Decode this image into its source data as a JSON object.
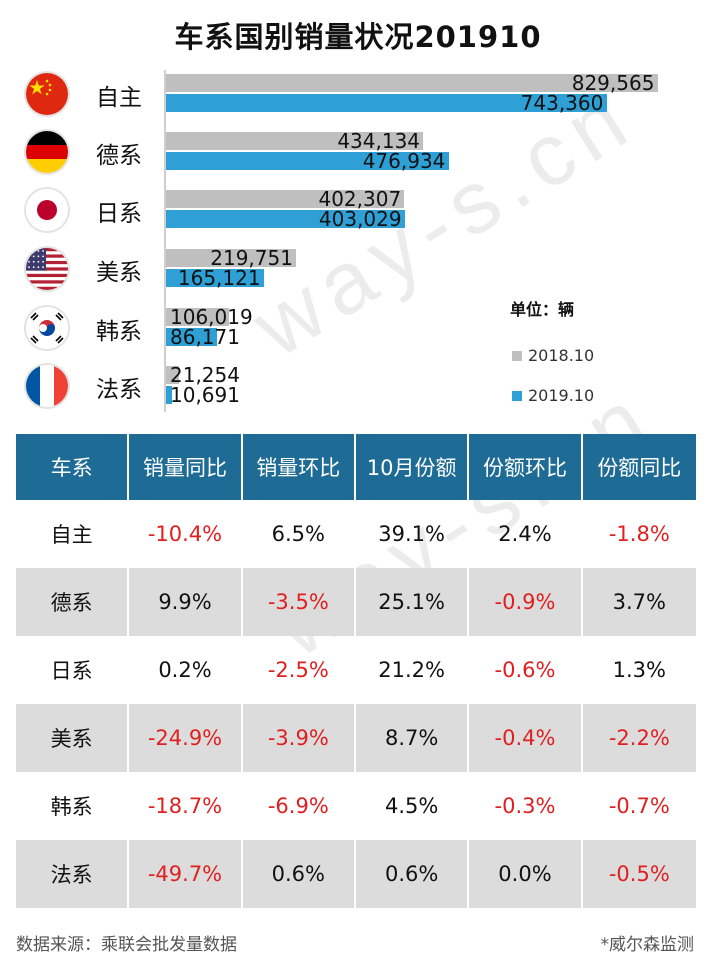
{
  "title": "车系国别销量状况201910",
  "watermark": "way-s.cn",
  "legend": {
    "unit": "单位：辆",
    "items": [
      {
        "label": "2018.10",
        "color": "#bfbfbf"
      },
      {
        "label": "2019.10",
        "color": "#2ea0d5"
      }
    ]
  },
  "chart_data": {
    "type": "bar",
    "orientation": "horizontal",
    "title": "车系国别销量状况201910",
    "categories": [
      "自主",
      "德系",
      "日系",
      "美系",
      "韩系",
      "法系"
    ],
    "series": [
      {
        "name": "2018.10",
        "color": "#bfbfbf",
        "values": [
          829565,
          434134,
          402307,
          219751,
          106019,
          21254
        ]
      },
      {
        "name": "2019.10",
        "color": "#2ea0d5",
        "values": [
          743360,
          476934,
          403029,
          165121,
          86171,
          10691
        ]
      }
    ],
    "value_labels": [
      [
        "829,565",
        "743,360"
      ],
      [
        "434,134",
        "476,934"
      ],
      [
        "402,307",
        "403,029"
      ],
      [
        "219,751",
        "165,121"
      ],
      [
        "106,019",
        "86,171"
      ],
      [
        "21,254",
        "10,691"
      ]
    ],
    "unit": "辆",
    "legend_position": "right",
    "grid": false
  },
  "flags": [
    "china-flag-icon",
    "germany-flag-icon",
    "japan-flag-icon",
    "usa-flag-icon",
    "korea-flag-icon",
    "france-flag-icon"
  ],
  "table": {
    "headers": [
      "车系",
      "销量同比",
      "销量环比",
      "10月份额",
      "份额环比",
      "份额同比"
    ],
    "rows": [
      [
        "自主",
        "-10.4%",
        "6.5%",
        "39.1%",
        "2.4%",
        "-1.8%"
      ],
      [
        "德系",
        "9.9%",
        "-3.5%",
        "25.1%",
        "-0.9%",
        "3.7%"
      ],
      [
        "日系",
        "0.2%",
        "-2.5%",
        "21.2%",
        "-0.6%",
        "1.3%"
      ],
      [
        "美系",
        "-24.9%",
        "-3.9%",
        "8.7%",
        "-0.4%",
        "-2.2%"
      ],
      [
        "韩系",
        "-18.7%",
        "-6.9%",
        "4.5%",
        "-0.3%",
        "-0.7%"
      ],
      [
        "法系",
        "-49.7%",
        "0.6%",
        "0.6%",
        "0.0%",
        "-0.5%"
      ]
    ],
    "negative_color": "#e02020",
    "header_color": "#1e6b95"
  },
  "footer": {
    "source": "数据来源：乘联会批发量数据",
    "credit": "*威尔森监测"
  }
}
